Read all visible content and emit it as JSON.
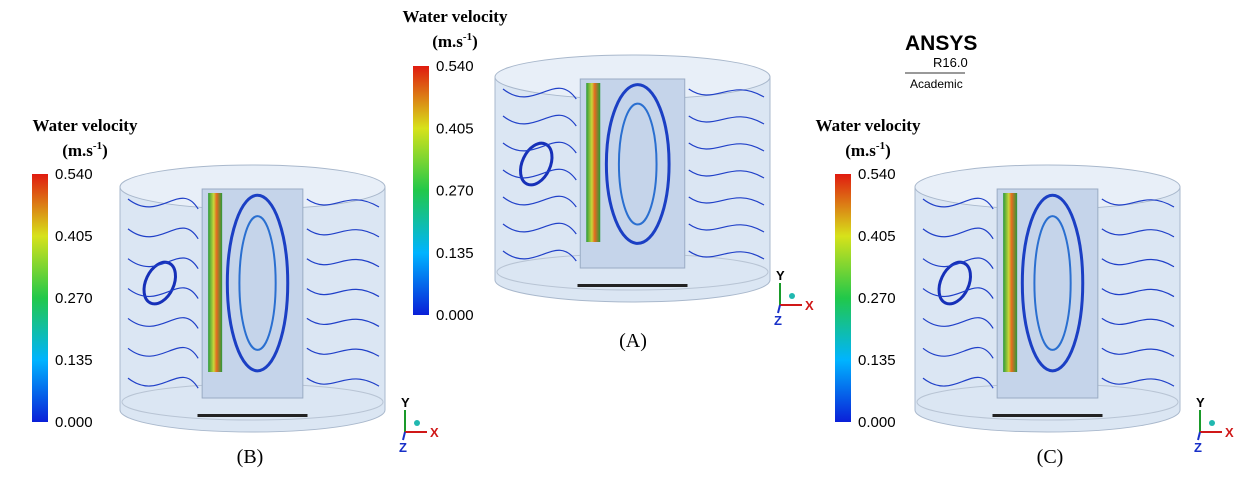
{
  "figure": {
    "logo": {
      "name": "ANSYS",
      "version": "R16.0",
      "edition": "Academic"
    },
    "panels": [
      {
        "label": "(A)",
        "legend": {
          "title": "Water velocity",
          "unit_base": "(m.s",
          "unit_exp": "-1",
          "unit_close": ")",
          "ticks": [
            "0.540",
            "0.405",
            "0.270",
            "0.135",
            "0.000"
          ]
        },
        "axes": {
          "y": "Y",
          "x": "X",
          "z": "Z"
        }
      },
      {
        "label": "(B)",
        "legend": {
          "title": "Water velocity",
          "unit_base": "(m.s",
          "unit_exp": "-1",
          "unit_close": ")",
          "ticks": [
            "0.540",
            "0.405",
            "0.270",
            "0.135",
            "0.000"
          ]
        },
        "axes": {
          "y": "Y",
          "x": "X",
          "z": "Z"
        }
      },
      {
        "label": "(C)",
        "legend": {
          "title": "Water velocity",
          "unit_base": "(m.s",
          "unit_exp": "-1",
          "unit_close": ")",
          "ticks": [
            "0.540",
            "0.405",
            "0.270",
            "0.135",
            "0.000"
          ]
        },
        "axes": {
          "y": "Y",
          "x": "X",
          "z": "Z"
        }
      }
    ]
  }
}
